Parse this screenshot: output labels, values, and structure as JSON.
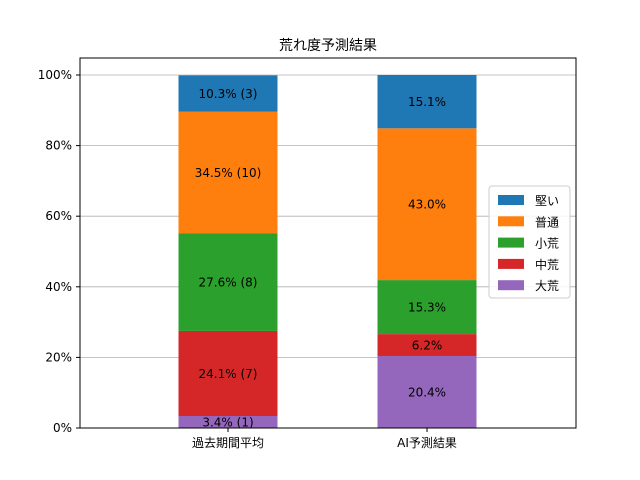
{
  "chart_data": {
    "type": "bar",
    "stacked": true,
    "title": "荒れ度予測結果",
    "xlabel": "",
    "ylabel": "",
    "categories": [
      "過去期間平均",
      "AI予測結果"
    ],
    "ylim": [
      0,
      100
    ],
    "y_ticks": [
      "0%",
      "20%",
      "40%",
      "60%",
      "80%",
      "100%"
    ],
    "grid": "horizontal",
    "legend_position": "right",
    "series": [
      {
        "name": "大荒",
        "color": "#9467bd",
        "values": [
          3.4,
          20.4
        ],
        "labels": [
          "3.4% (1)",
          "20.4%"
        ]
      },
      {
        "name": "中荒",
        "color": "#d62728",
        "values": [
          24.1,
          6.2
        ],
        "labels": [
          "24.1% (7)",
          "6.2%"
        ]
      },
      {
        "name": "小荒",
        "color": "#2ca02c",
        "values": [
          27.6,
          15.3
        ],
        "labels": [
          "27.6% (8)",
          "15.3%"
        ]
      },
      {
        "name": "普通",
        "color": "#ff7f0e",
        "values": [
          34.5,
          43.0
        ],
        "labels": [
          "34.5% (10)",
          "43.0%"
        ]
      },
      {
        "name": "堅い",
        "color": "#1f77b4",
        "values": [
          10.3,
          15.1
        ],
        "labels": [
          "10.3% (3)",
          "15.1%"
        ]
      }
    ],
    "legend_order": [
      "堅い",
      "普通",
      "小荒",
      "中荒",
      "大荒"
    ]
  }
}
